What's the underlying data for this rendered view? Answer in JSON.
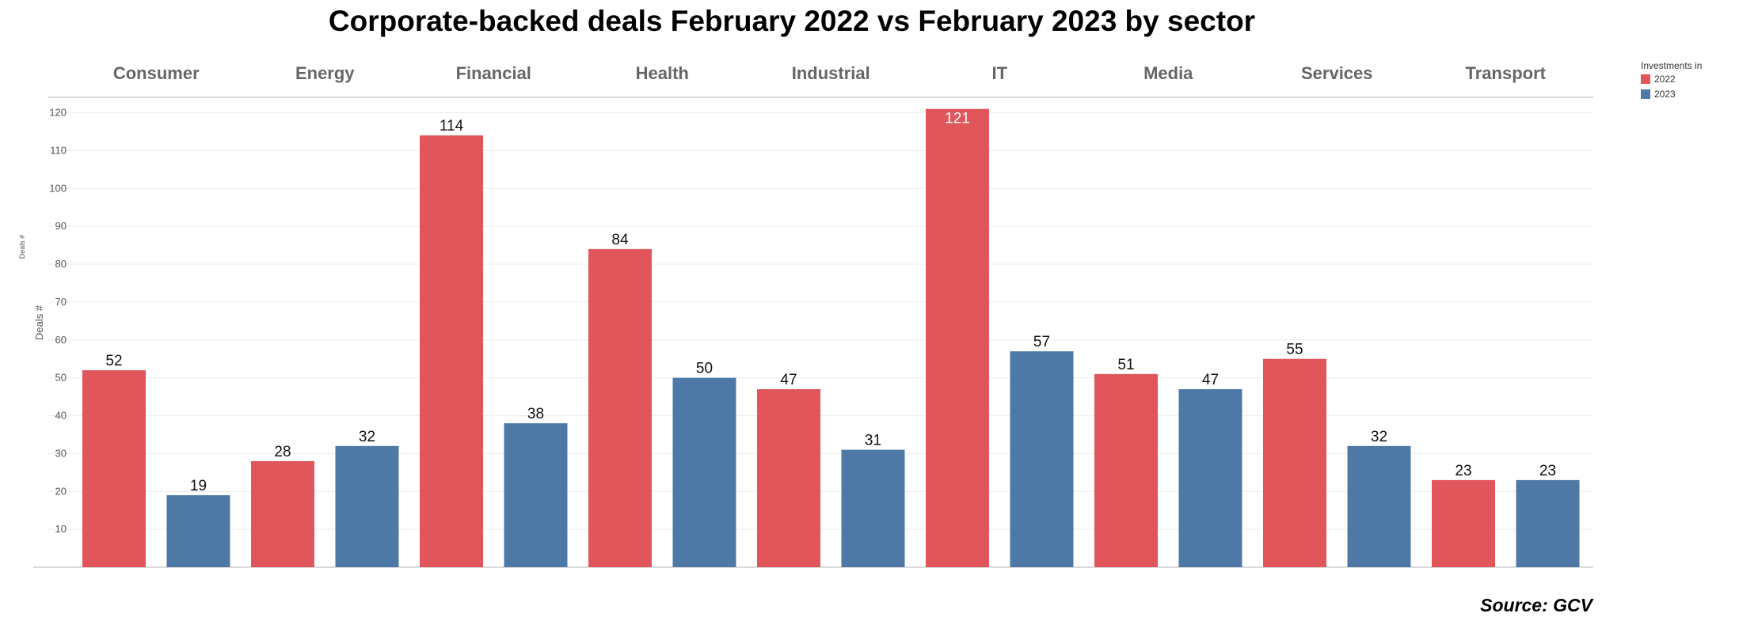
{
  "title": "Corporate-backed deals February 2022 vs February 2023 by sector",
  "source": "Source: GCV",
  "legend": {
    "title": "Investments in",
    "items": [
      {
        "label": "2022",
        "color": "#e0565b"
      },
      {
        "label": "2023",
        "color": "#4e79a7"
      }
    ]
  },
  "chart_data": {
    "type": "bar",
    "title": "Corporate-backed deals February 2022 vs February 2023 by sector",
    "ylabel": "Deals #",
    "ylabel_small": "Deals #",
    "ylim": [
      0,
      125
    ],
    "yticks": [
      10,
      20,
      30,
      40,
      50,
      60,
      70,
      80,
      90,
      100,
      110,
      120
    ],
    "categories": [
      "Consumer",
      "Energy",
      "Financial",
      "Health",
      "Industrial",
      "IT",
      "Media",
      "Services",
      "Transport"
    ],
    "series": [
      {
        "name": "2022",
        "color": "#e0565b",
        "values": [
          52,
          28,
          114,
          84,
          47,
          121,
          51,
          55,
          23
        ]
      },
      {
        "name": "2023",
        "color": "#4e79a7",
        "values": [
          19,
          32,
          38,
          50,
          31,
          57,
          47,
          32,
          23
        ]
      }
    ],
    "grid": true,
    "legend_position": "top-right"
  }
}
